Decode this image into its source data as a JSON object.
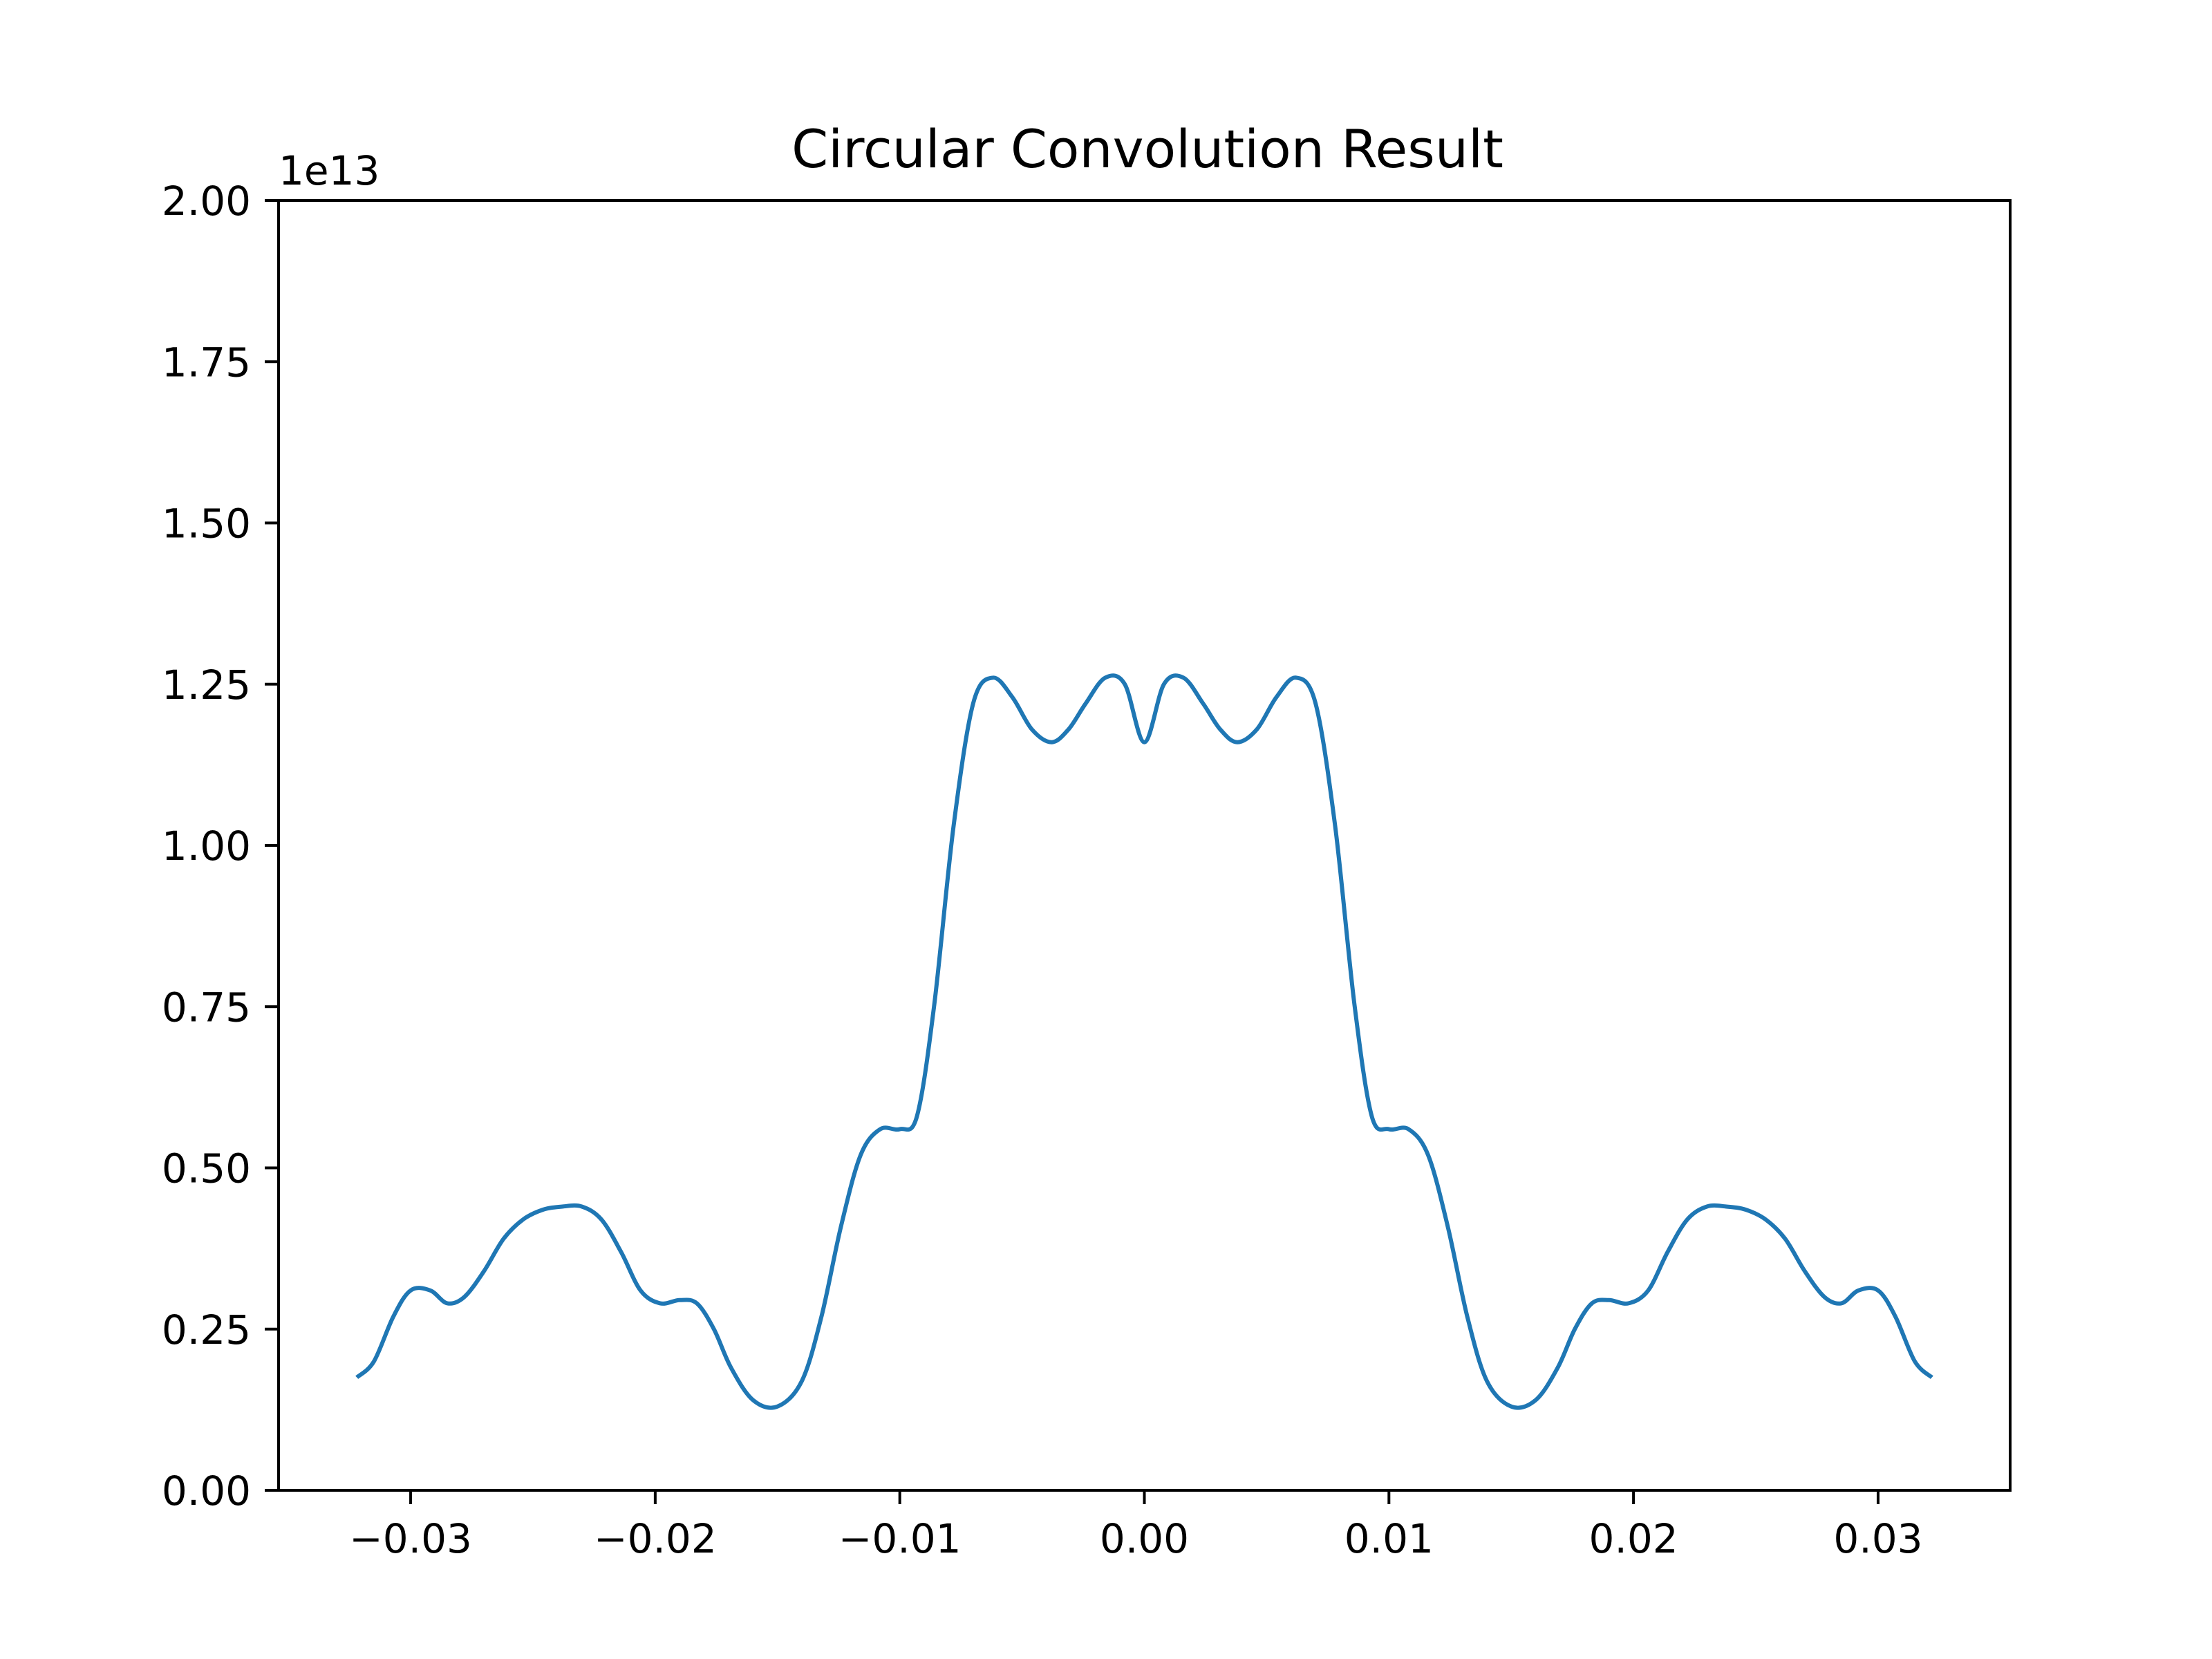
{
  "chart_data": {
    "type": "line",
    "title": "Circular Convolution Result",
    "xlabel": "",
    "ylabel": "",
    "y_offset_label": "1e13",
    "xlim": [
      -0.0354,
      0.0354
    ],
    "ylim": [
      0,
      2.0
    ],
    "x_ticks": [
      -0.03,
      -0.02,
      -0.01,
      0.0,
      0.01,
      0.02,
      0.03
    ],
    "x_tick_labels": [
      "−0.03",
      "−0.02",
      "−0.01",
      "0.00",
      "0.01",
      "0.02",
      "0.03"
    ],
    "y_ticks": [
      0,
      0.25,
      0.5,
      0.75,
      1.0,
      1.25,
      1.5,
      1.75,
      2.0
    ],
    "y_tick_labels": [
      "0.00",
      "0.25",
      "0.50",
      "0.75",
      "1.00",
      "1.25",
      "1.50",
      "1.75",
      "2.00"
    ],
    "grid": false,
    "line_color": "#1f77b4",
    "series": [
      {
        "x": [
          -0.0322,
          -0.0315,
          -0.0307,
          -0.03,
          -0.0292,
          -0.0285,
          -0.0278,
          -0.027,
          -0.0262,
          -0.0254,
          -0.0246,
          -0.0238,
          -0.023,
          -0.0222,
          -0.0214,
          -0.0206,
          -0.0198,
          -0.019,
          -0.0183,
          -0.0176,
          -0.0169,
          -0.016,
          -0.015,
          -0.014,
          -0.0132,
          -0.0124,
          -0.0116,
          -0.0108,
          -0.01,
          -0.0093,
          -0.0086,
          -0.0078,
          -0.007,
          -0.0062,
          -0.0054,
          -0.0046,
          -0.0038,
          -0.0031,
          -0.0024,
          -0.0016,
          -0.0008,
          0.0,
          0.0008,
          0.0016,
          0.0024,
          0.0031,
          0.0038,
          0.0046,
          0.0054,
          0.0062,
          0.007,
          0.0078,
          0.0086,
          0.0093,
          0.01,
          0.0108,
          0.0116,
          0.0124,
          0.0132,
          0.014,
          0.015,
          0.016,
          0.0169,
          0.0176,
          0.0183,
          0.019,
          0.0198,
          0.0206,
          0.0214,
          0.0222,
          0.023,
          0.0238,
          0.0246,
          0.0254,
          0.0262,
          0.027,
          0.0278,
          0.0285,
          0.0292,
          0.03,
          0.0307,
          0.0315,
          0.0322
        ],
        "y": [
          0.175,
          0.2,
          0.27,
          0.31,
          0.31,
          0.29,
          0.3,
          0.34,
          0.39,
          0.42,
          0.435,
          0.44,
          0.44,
          0.42,
          0.37,
          0.31,
          0.29,
          0.295,
          0.29,
          0.25,
          0.19,
          0.14,
          0.13,
          0.17,
          0.27,
          0.41,
          0.52,
          0.56,
          0.56,
          0.58,
          0.75,
          1.03,
          1.22,
          1.26,
          1.23,
          1.18,
          1.16,
          1.18,
          1.22,
          1.26,
          1.25,
          1.16,
          1.25,
          1.26,
          1.22,
          1.18,
          1.16,
          1.18,
          1.23,
          1.26,
          1.22,
          1.03,
          0.75,
          0.58,
          0.56,
          0.56,
          0.52,
          0.41,
          0.27,
          0.17,
          0.13,
          0.14,
          0.19,
          0.25,
          0.29,
          0.295,
          0.29,
          0.31,
          0.37,
          0.42,
          0.44,
          0.44,
          0.435,
          0.42,
          0.39,
          0.34,
          0.3,
          0.29,
          0.31,
          0.31,
          0.27,
          0.2,
          0.175
        ]
      }
    ]
  }
}
